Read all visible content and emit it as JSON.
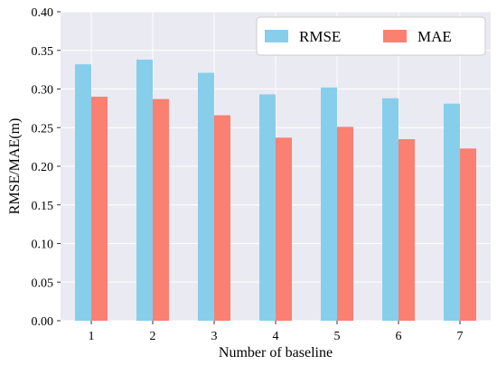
{
  "chart_data": {
    "type": "bar",
    "title": "",
    "xlabel": "Number of baseline",
    "ylabel": "RMSE/MAE(m)",
    "categories": [
      "1",
      "2",
      "3",
      "4",
      "5",
      "6",
      "7"
    ],
    "series": [
      {
        "name": "RMSE",
        "color": "#87CEEB",
        "values": [
          0.332,
          0.338,
          0.321,
          0.293,
          0.302,
          0.288,
          0.281
        ]
      },
      {
        "name": "MAE",
        "color": "#FA8072",
        "values": [
          0.29,
          0.287,
          0.266,
          0.237,
          0.251,
          0.235,
          0.223
        ]
      }
    ],
    "ylim": [
      0,
      0.4
    ],
    "yticks": [
      "0.00",
      "0.05",
      "0.10",
      "0.15",
      "0.20",
      "0.25",
      "0.30",
      "0.35",
      "0.40"
    ],
    "grid": true,
    "grid_background": "#EAEAF2",
    "legend_position": "top-right"
  }
}
